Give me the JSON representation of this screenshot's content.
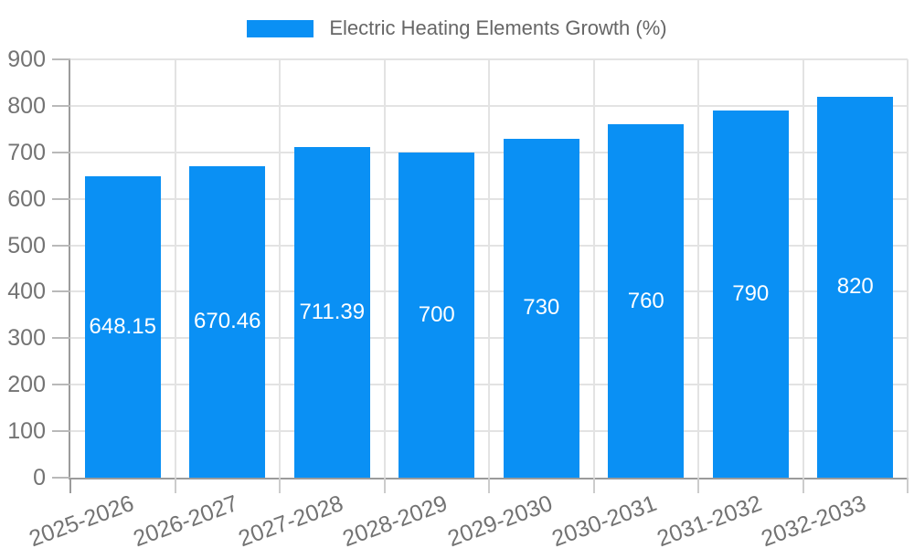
{
  "chart_data": {
    "type": "bar",
    "title": "Electric Heating Elements Growth (%)",
    "categories": [
      "2025-2026",
      "2026-2027",
      "2027-2028",
      "2028-2029",
      "2029-2030",
      "2030-2031",
      "2031-2032",
      "2032-2033"
    ],
    "values": [
      648.15,
      670.46,
      711.39,
      700,
      730,
      760,
      790,
      820
    ],
    "value_labels": [
      "648.15",
      "670.46",
      "711.39",
      "700",
      "730",
      "760",
      "790",
      "820"
    ],
    "xlabel": "",
    "ylabel": "",
    "ylim": [
      0,
      900
    ],
    "yticks": [
      0,
      100,
      200,
      300,
      400,
      500,
      600,
      700,
      800,
      900
    ],
    "grid": true,
    "legend_position": "top",
    "colors": {
      "bar": "#0a90f4",
      "value_label": "#ffffff",
      "axis": "#9b9b9b",
      "grid": "#e3e3e3",
      "tick_text": "#737373",
      "legend_text": "#666666"
    }
  }
}
